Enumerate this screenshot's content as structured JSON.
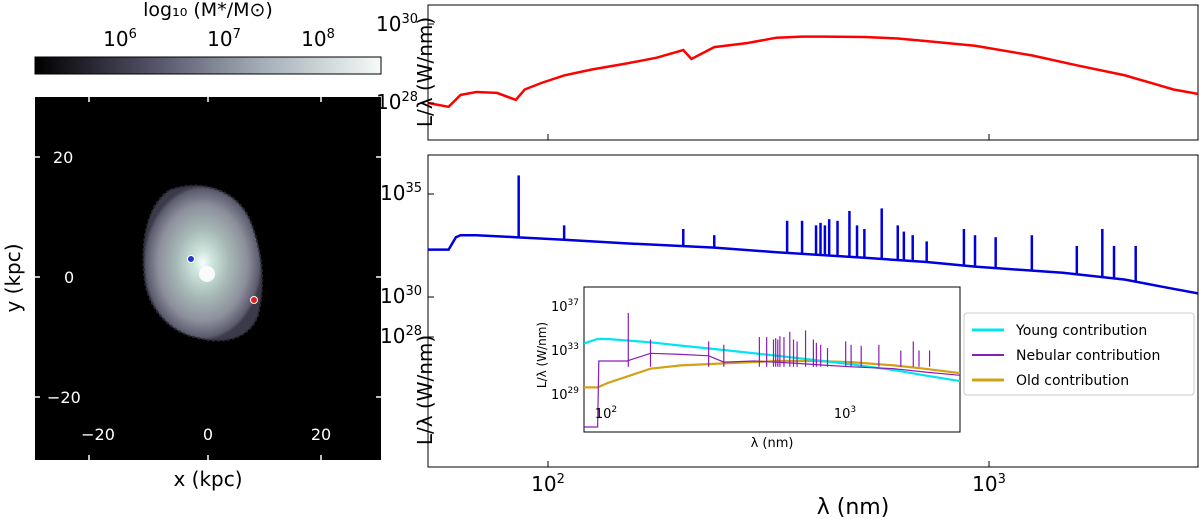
{
  "colorbar": {
    "label": "log₁₀ (M*/M⊙)",
    "ticks": [
      "10^6",
      "10^7",
      "10^8"
    ]
  },
  "map": {
    "xlabel": "x (kpc)",
    "ylabel": "y (kpc)",
    "xticks": [
      "−20",
      "0",
      "20"
    ],
    "yticks": [
      "20",
      "0",
      "−20"
    ],
    "markers": [
      {
        "name": "blue-point",
        "x": -3,
        "y": 3,
        "color": "#1f3bd6"
      },
      {
        "name": "red-point",
        "x": 8,
        "y": -4,
        "color": "#e02020"
      }
    ]
  },
  "top_panel": {
    "ylabel": "L/λ (W/nm)",
    "yticks": [
      "10^30",
      "10^28"
    ],
    "color": "#ff0000"
  },
  "bottom_panel": {
    "ylabel": "L/λ (W/nm)",
    "yticks": [
      "10^35",
      "10^30",
      "10^28"
    ],
    "xticks": [
      "10^2",
      "10^3"
    ],
    "xlabel": "λ (nm)",
    "color": "#0000dd"
  },
  "inset": {
    "ylabel": "L/λ (W/nm)",
    "yticks": [
      "10^37",
      "10^33",
      "10^29"
    ],
    "xticks": [
      "10^2",
      "10^3"
    ],
    "xlabel": "λ (nm)"
  },
  "legend": {
    "entries": [
      {
        "label": "Young contribution",
        "color": "#00e5ee"
      },
      {
        "label": "Nebular contribution",
        "color": "#8b1cb8"
      },
      {
        "label": "Old contribution",
        "color": "#d4a017"
      }
    ]
  },
  "chart_data": [
    {
      "type": "heatmap",
      "xlabel": "x (kpc)",
      "ylabel": "y (kpc)",
      "xlim": [
        -30,
        30
      ],
      "ylim": [
        -30,
        30
      ],
      "colorbar_label": "log₁₀ (M*/M⊙)",
      "colorbar_ticks": [
        "10^6",
        "10^7",
        "10^8"
      ],
      "points": [
        {
          "x": -3,
          "y": 3,
          "color": "blue"
        },
        {
          "x": 8,
          "y": -4,
          "color": "red"
        }
      ]
    },
    {
      "type": "line",
      "xscale": "log",
      "yscale": "log",
      "xlim": [
        80,
        2800
      ],
      "ylabel": "L/λ (W/nm)",
      "yticks": [
        "10^30",
        "10^28"
      ],
      "series": [
        {
          "color": "red",
          "x": [
            80,
            88,
            93,
            100,
            110,
            120,
            125,
            135,
            150,
            170,
            200,
            230,
            260,
            270,
            300,
            350,
            400,
            450,
            500,
            600,
            700,
            800,
            1000,
            1300,
            1600,
            2000,
            2300,
            2500,
            2800
          ],
          "y": [
            1e+28,
            8e+27,
            1.6e+28,
            1.9e+28,
            1.8e+28,
            1.2e+28,
            2.2e+28,
            3.2e+28,
            5e+28,
            7e+28,
            1e+29,
            1.4e+29,
            2.2e+29,
            1.3e+29,
            2.6e+29,
            3.3e+29,
            4.5e+29,
            4.8e+29,
            4.8e+29,
            4.7e+29,
            4.3e+29,
            3.7e+29,
            2.8e+29,
            1.6e+29,
            9e+28,
            5e+28,
            3e+28,
            2.2e+28,
            1.7e+28
          ]
        }
      ]
    },
    {
      "type": "line",
      "xscale": "log",
      "yscale": "log",
      "xlim": [
        80,
        2800
      ],
      "xlabel": "λ (nm)",
      "ylabel": "L/λ (W/nm)",
      "yticks": [
        "10^35",
        "10^30",
        "10^28"
      ],
      "xticks": [
        "10^2",
        "10^3"
      ],
      "series": [
        {
          "color": "blue",
          "x": [
            80,
            88,
            91,
            93,
            100,
            120,
            150,
            200,
            300,
            400,
            600,
            800,
            1000,
            1500,
            2000,
            2400,
            2800
          ],
          "y": [
            2e+32,
            2e+32,
            8e+32,
            1e+33,
            1e+33,
            8e+32,
            6e+32,
            4e+32,
            2.5e+32,
            1.5e+32,
            8e+31,
            5e+31,
            3e+31,
            1.5e+31,
            7e+30,
            3e+30,
            1.5e+30
          ],
          "lines_x": [
            121.6,
            150,
            260,
            300,
            420,
            450,
            480,
            490,
            500,
            510,
            530,
            560,
            580,
            600,
            650,
            700,
            720,
            750,
            800,
            950,
            1000,
            1100,
            1300,
            1600,
            1800,
            1900,
            2100
          ],
          "lines_y": [
            8e+35,
            3e+33,
            2e+33,
            1e+33,
            5e+33,
            5e+33,
            3e+33,
            4e+33,
            3e+33,
            6e+33,
            5e+33,
            1.5e+34,
            3e+33,
            2e+33,
            2e+34,
            3e+33,
            1.5e+33,
            1e+33,
            5e+32,
            2e+33,
            1e+33,
            8e+32,
            1e+33,
            3e+32,
            2e+33,
            3e+32,
            3e+32
          ]
        }
      ]
    },
    {
      "type": "line",
      "xscale": "log",
      "yscale": "log",
      "xlabel": "λ (nm)",
      "ylabel": "L/λ (W/nm)",
      "xticks": [
        "10^2",
        "10^3"
      ],
      "yticks": [
        "10^37",
        "10^33",
        "10^29"
      ],
      "series": [
        {
          "name": "Young contribution",
          "color": "cyan",
          "x": [
            80,
            91,
            100,
            150,
            200,
            300,
            500,
            800,
            1000,
            1500,
            2000,
            2800
          ],
          "y": [
            4e+33,
            1e+34,
            1e+34,
            5e+33,
            2.5e+33,
            1e+33,
            3e+32,
            9e+31,
            5e+31,
            1.5e+31,
            5e+30,
            1.5e+30
          ]
        },
        {
          "name": "Nebular contribution",
          "color": "purple",
          "x": [
            80,
            91,
            92,
            120,
            150,
            200,
            260,
            300,
            400,
            600,
            800,
            1000,
            1500,
            2000,
            2800
          ],
          "y": [
            1e+26,
            1e+26,
            1e+32,
            1e+32,
            5e+32,
            4e+32,
            3e+32,
            8e+31,
            1e+32,
            6e+31,
            4e+31,
            3e+31,
            2e+31,
            1e+31,
            5e+30
          ]
        },
        {
          "name": "Old contribution",
          "color": "goldenrod",
          "x": [
            80,
            91,
            100,
            150,
            200,
            300,
            500,
            700,
            1000,
            1500,
            2000,
            2800
          ],
          "y": [
            4e+29,
            4e+29,
            1e+30,
            2e+31,
            4e+31,
            6e+31,
            1e+32,
            1e+32,
            8e+31,
            4e+31,
            2e+31,
            8e+30
          ]
        }
      ]
    }
  ]
}
